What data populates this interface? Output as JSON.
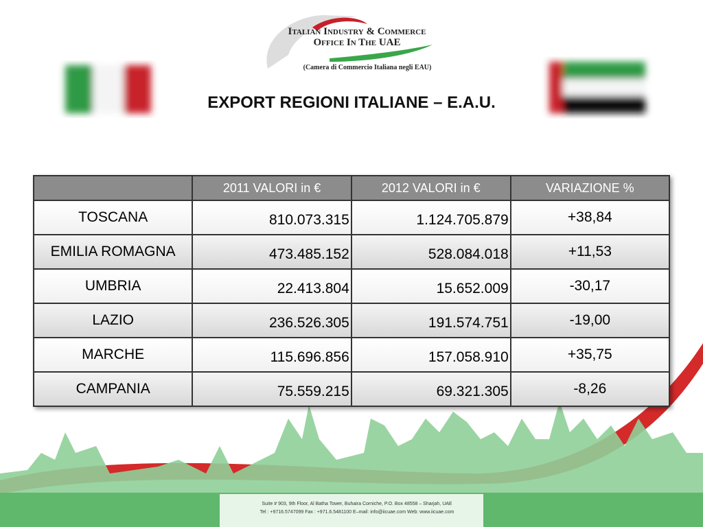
{
  "header": {
    "logo_line1": "Italian Industry & Commerce",
    "logo_line2": "Office In The UAE",
    "logo_subtitle": "(Camera di Commercio Italiana negli EAU)",
    "title": "EXPORT REGIONI ITALIANE – E.A.U."
  },
  "table": {
    "columns": [
      "2011 VALORI in €",
      "2012 VALORI in €",
      "VARIAZIONE %"
    ],
    "rows": [
      [
        "TOSCANA",
        "810.073.315",
        "1.124.705.879",
        "+38,84"
      ],
      [
        "EMILIA ROMAGNA",
        "473.485.152",
        "528.084.018",
        "+11,53"
      ],
      [
        "UMBRIA",
        "22.413.804",
        "15.652.009",
        "-30,17"
      ],
      [
        "LAZIO",
        "236.526.305",
        "191.574.751",
        "-19,00"
      ],
      [
        "MARCHE",
        "115.696.856",
        "157.058.910",
        "+35,75"
      ],
      [
        "CAMPANIA",
        "75.559.215",
        "69.321.305",
        "-8,26"
      ]
    ]
  },
  "footer": {
    "address": "Suite # 903, 9th Floor, Al Batha Tower, Buhaira Corniche, P.O. Box 48558 – Sharjah, UAE",
    "contacts": "Tel : +9716.5747099  Fax : +971.6.5481100  E–mail: info@iicuae.com  Web: www.iicuae.com"
  }
}
